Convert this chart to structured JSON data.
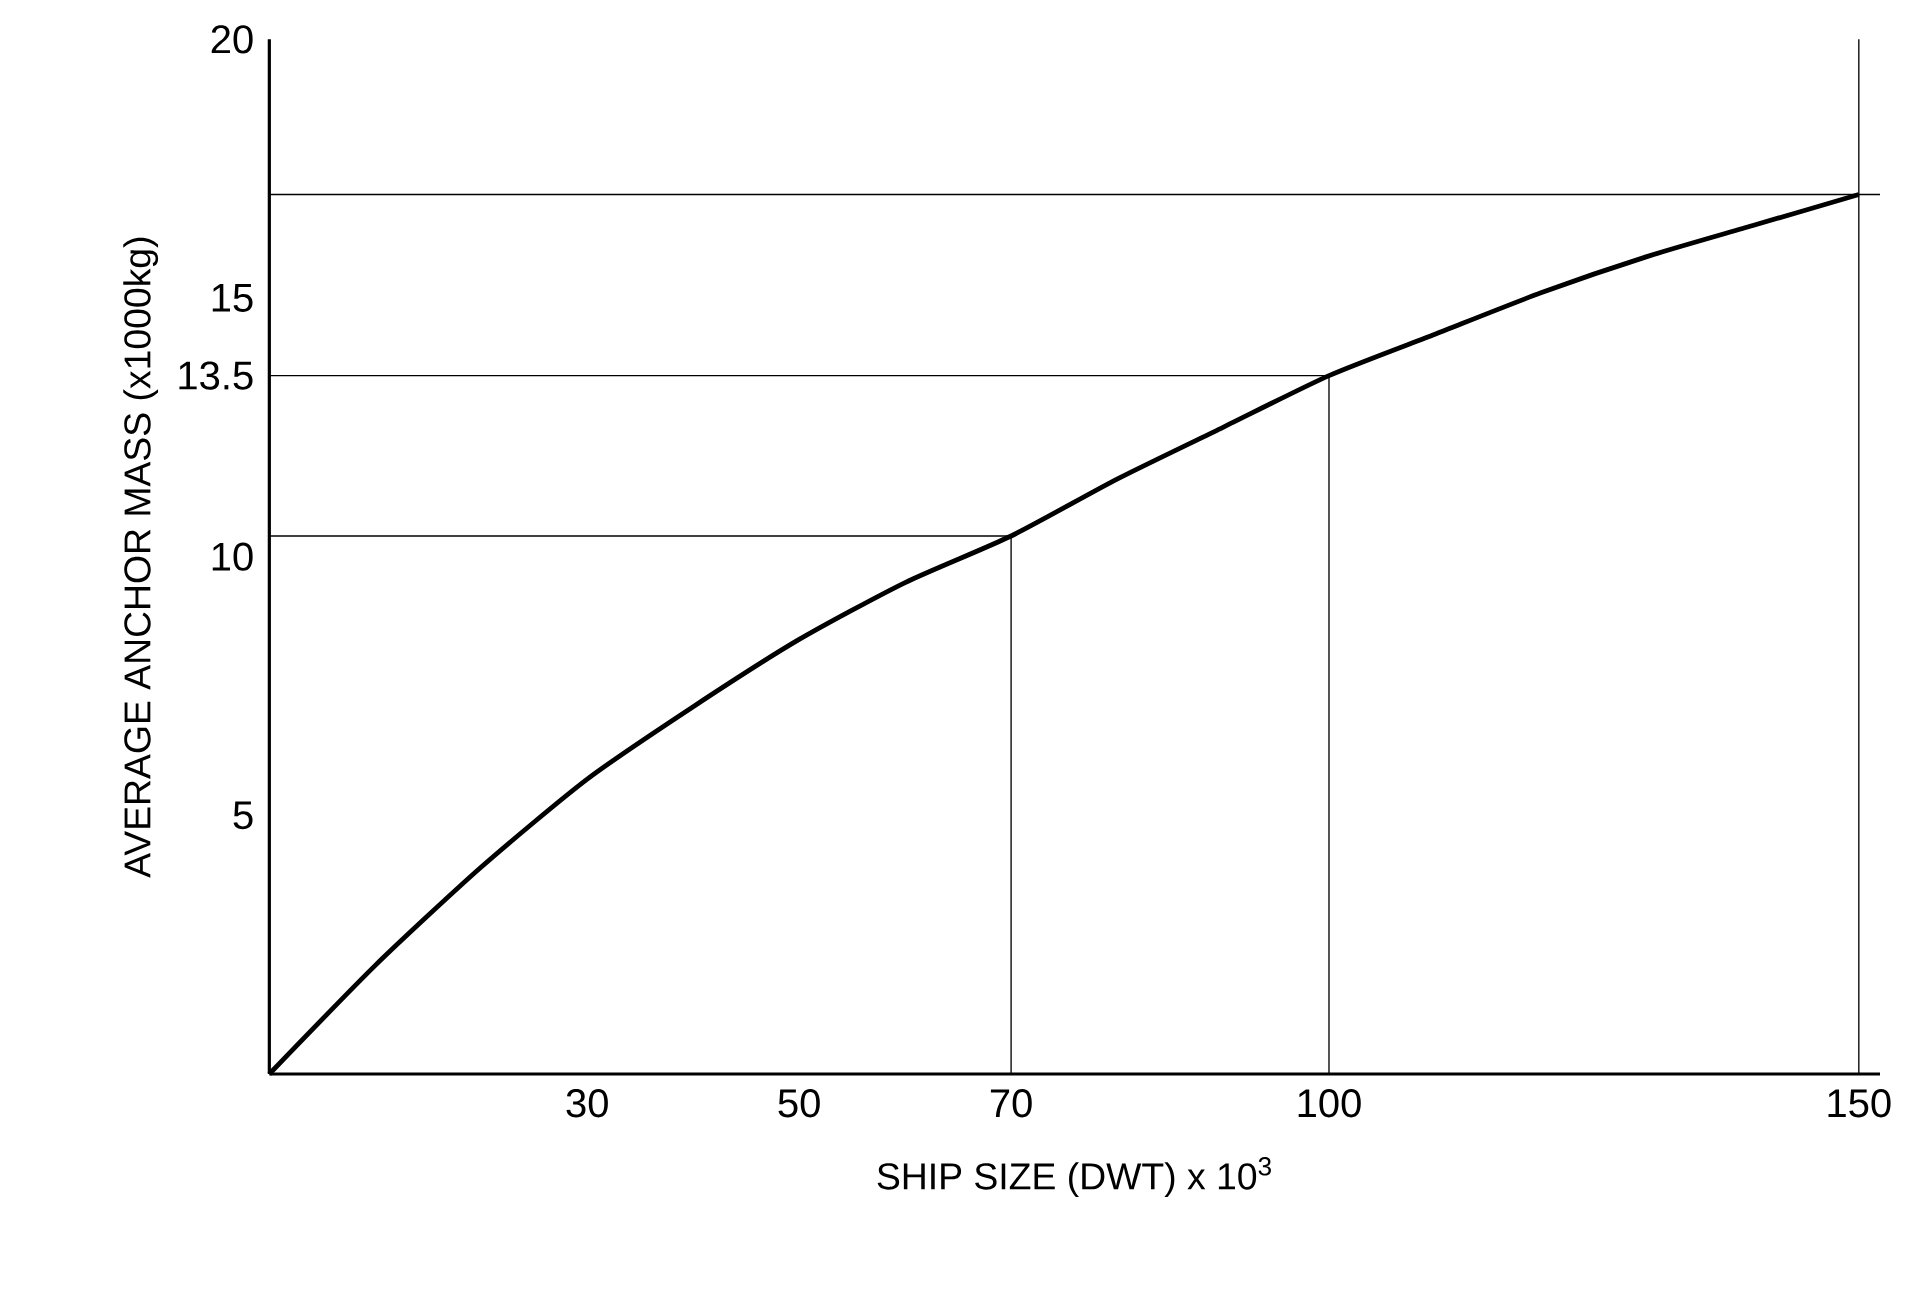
{
  "chart_data": {
    "type": "line",
    "xlabel": "SHIP SIZE (DWT) x 10$^{3}$",
    "ylabel": "AVERAGE ANCHOR MASS (x1000kg)",
    "x": [
      0,
      10,
      20,
      30,
      40,
      50,
      60,
      70,
      80,
      90,
      100,
      110,
      120,
      130,
      140,
      150
    ],
    "values": [
      0,
      2.1,
      4.0,
      5.7,
      7.1,
      8.4,
      9.5,
      10.4,
      11.5,
      12.5,
      13.5,
      14.3,
      15.1,
      15.8,
      16.4,
      17.0
    ],
    "color": "#000000",
    "xlim": [
      0,
      152
    ],
    "ylim": [
      0,
      20
    ],
    "xticks": [
      30,
      50,
      70,
      100,
      150
    ],
    "yticks": [
      5,
      10,
      13.5,
      15,
      20
    ],
    "ref_lines": [
      {
        "axis": "x",
        "value": 70
      },
      {
        "axis": "x",
        "value": 100
      },
      {
        "axis": "x",
        "value": 150
      },
      {
        "axis": "y",
        "value": 10.4
      },
      {
        "axis": "y",
        "value": 13.5
      },
      {
        "axis": "y",
        "value": 17.0
      }
    ],
    "grid": false,
    "marker": "none",
    "line_style": "solid"
  }
}
